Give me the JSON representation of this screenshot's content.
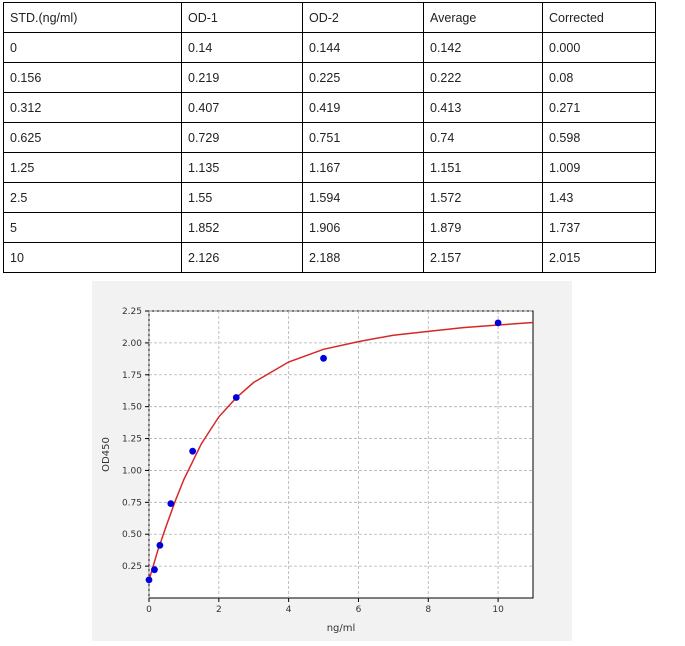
{
  "table": {
    "headers": [
      "STD.(ng/ml)",
      "OD-1",
      "OD-2",
      "Average",
      "Corrected"
    ],
    "rows": [
      [
        "0",
        "0.14",
        "0.144",
        "0.142",
        "0.000"
      ],
      [
        "0.156",
        "0.219",
        "0.225",
        "0.222",
        "0.08"
      ],
      [
        "0.312",
        "0.407",
        "0.419",
        "0.413",
        "0.271"
      ],
      [
        "0.625",
        "0.729",
        "0.751",
        "0.74",
        "0.598"
      ],
      [
        "1.25",
        "1.135",
        "1.167",
        "1.151",
        "1.009"
      ],
      [
        "2.5",
        "1.55",
        "1.594",
        "1.572",
        "1.43"
      ],
      [
        "5",
        "1.852",
        "1.906",
        "1.879",
        "1.737"
      ],
      [
        "10",
        "2.126",
        "2.188",
        "2.157",
        "2.015"
      ]
    ]
  },
  "chart_data": {
    "type": "scatter",
    "title": "",
    "xlabel": "ng/ml",
    "ylabel": "OD450",
    "xlim": [
      0,
      11
    ],
    "ylim": [
      0.0,
      2.25
    ],
    "xticks": [
      "0",
      "2",
      "4",
      "6",
      "8",
      "10"
    ],
    "yticks": [
      "0.25",
      "0.50",
      "0.75",
      "1.00",
      "1.25",
      "1.50",
      "1.75",
      "2.00",
      "2.25"
    ],
    "grid": true,
    "points": {
      "x": [
        0,
        0.156,
        0.312,
        0.625,
        1.25,
        2.5,
        5,
        10
      ],
      "y": [
        0.142,
        0.222,
        0.413,
        0.74,
        1.151,
        1.572,
        1.879,
        2.157
      ],
      "color": "#0000dd"
    },
    "fit_curve": {
      "color": "#d62728",
      "x": [
        0,
        0.25,
        0.5,
        0.75,
        1,
        1.5,
        2,
        2.5,
        3,
        4,
        5,
        6,
        7,
        8,
        9,
        10,
        11
      ],
      "y": [
        0.14,
        0.37,
        0.57,
        0.76,
        0.93,
        1.21,
        1.42,
        1.57,
        1.69,
        1.85,
        1.95,
        2.01,
        2.06,
        2.09,
        2.12,
        2.14,
        2.16
      ]
    }
  }
}
